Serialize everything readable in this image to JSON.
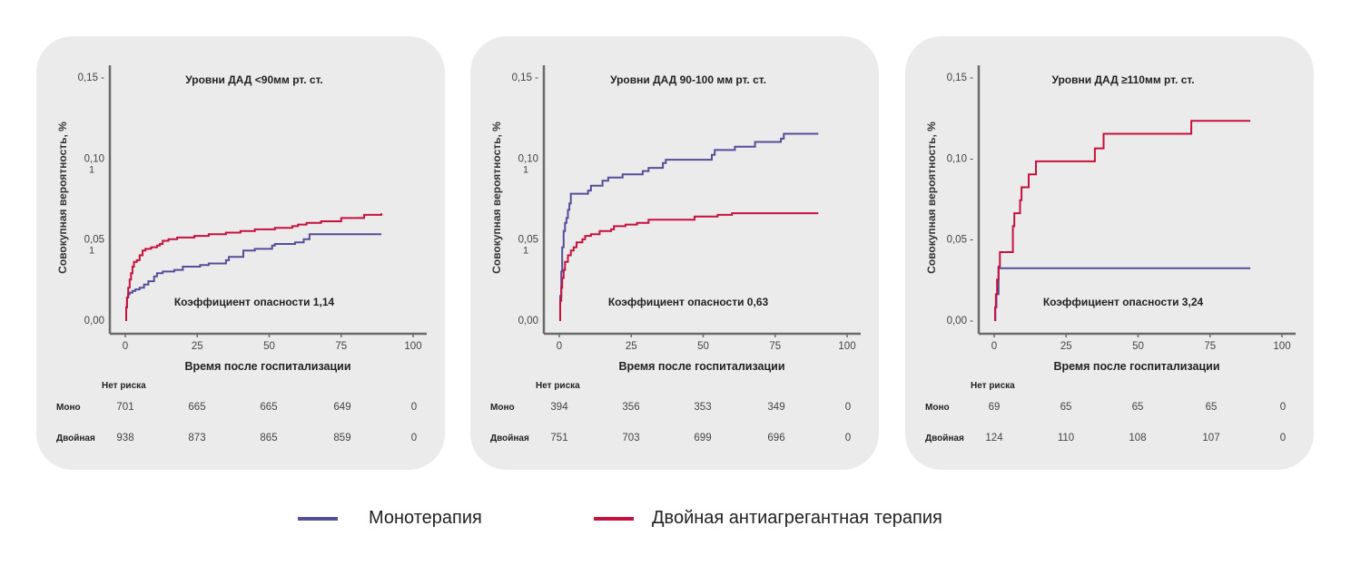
{
  "colors": {
    "mono": "#544e98",
    "dual": "#c8103e",
    "axis": "#6b6b6b",
    "panel_bg": "#ebebeb"
  },
  "legend": [
    {
      "label": "Монотерапия",
      "color": "#544e98"
    },
    {
      "label": "Двойная антиагрегантная терапия",
      "color": "#c8103e"
    }
  ],
  "chart_data": [
    {
      "type": "line",
      "title": "Уровни ДАД <90мм рт. ст.",
      "xlabel": "Время после госпитализации",
      "ylabel": "Совокупная вероятность, %",
      "xlim": [
        -3,
        104
      ],
      "ylim": [
        -0.008,
        0.158
      ],
      "x_ticks": [
        "0",
        "25",
        "50",
        "75",
        "100"
      ],
      "x_tick_values": [
        0,
        25,
        50,
        75,
        100
      ],
      "y_ticks": [
        "0,00",
        "0,05",
        "0,10",
        "0,15 -"
      ],
      "y_tick_values": [
        0,
        0.05,
        0.1,
        0.15
      ],
      "y_tick_sublabels": [
        "",
        "1",
        "1",
        ""
      ],
      "annotation": "Коэффициент опасности 1,14",
      "series": [
        {
          "name": "Монотерапия",
          "key": "mono",
          "x": [
            0,
            0.3,
            0.6,
            1,
            1.5,
            2.5,
            3.5,
            5,
            6.5,
            8,
            10,
            11,
            13,
            17,
            20,
            26,
            29,
            35,
            36,
            41,
            45,
            51,
            52,
            59,
            62,
            64,
            89
          ],
          "y": [
            0,
            0.008,
            0.014,
            0.016,
            0.017,
            0.018,
            0.019,
            0.02,
            0.022,
            0.024,
            0.027,
            0.029,
            0.03,
            0.031,
            0.033,
            0.034,
            0.035,
            0.037,
            0.039,
            0.043,
            0.044,
            0.046,
            0.047,
            0.048,
            0.05,
            0.053,
            0.053
          ]
        },
        {
          "name": "Двойная антиагрегантная терапия",
          "key": "dual",
          "x": [
            0,
            0.3,
            0.6,
            1,
            1.5,
            2,
            2.5,
            3,
            4,
            5,
            6,
            7,
            9,
            11,
            12,
            13,
            15,
            18,
            24,
            29,
            35,
            40,
            45,
            52,
            58,
            60,
            63,
            68,
            75,
            83,
            89
          ],
          "y": [
            0,
            0.008,
            0.014,
            0.02,
            0.025,
            0.029,
            0.033,
            0.036,
            0.037,
            0.04,
            0.043,
            0.044,
            0.045,
            0.046,
            0.047,
            0.049,
            0.05,
            0.051,
            0.052,
            0.053,
            0.054,
            0.055,
            0.056,
            0.057,
            0.058,
            0.059,
            0.06,
            0.061,
            0.063,
            0.065,
            0.066
          ]
        }
      ],
      "at_risk": {
        "header": "Нет риска",
        "rows": [
          {
            "label": "Моно",
            "values": [
              "701",
              "665",
              "665",
              "649",
              "0"
            ]
          },
          {
            "label": "Двойная",
            "values": [
              "938",
              "873",
              "865",
              "859",
              "0"
            ]
          }
        ]
      }
    },
    {
      "type": "line",
      "title": "Уровни ДАД 90-100 мм рт. ст.",
      "xlabel": "Время после госпитализации",
      "ylabel": "Совокупная вероятность, %",
      "xlim": [
        -3,
        104
      ],
      "ylim": [
        -0.008,
        0.158
      ],
      "x_ticks": [
        "0",
        "25",
        "50",
        "75",
        "100"
      ],
      "x_tick_values": [
        0,
        25,
        50,
        75,
        100
      ],
      "y_ticks": [
        "0,00",
        "0,05",
        "0,10",
        "0,15 -"
      ],
      "y_tick_values": [
        0,
        0.05,
        0.1,
        0.15
      ],
      "y_tick_sublabels": [
        "",
        "1",
        "1",
        ""
      ],
      "annotation": "Коэффициент опасности 0,63",
      "series": [
        {
          "name": "Монотерапия",
          "key": "mono",
          "x": [
            0,
            0.3,
            0.7,
            1,
            1.5,
            2,
            2.5,
            3,
            3.5,
            4,
            5,
            10,
            11,
            15,
            17,
            22,
            29,
            31,
            36,
            37,
            53,
            54,
            61,
            68,
            77,
            78,
            90
          ],
          "y": [
            0,
            0.015,
            0.03,
            0.045,
            0.055,
            0.06,
            0.063,
            0.068,
            0.072,
            0.078,
            0.078,
            0.08,
            0.083,
            0.086,
            0.088,
            0.09,
            0.092,
            0.094,
            0.097,
            0.099,
            0.102,
            0.105,
            0.107,
            0.11,
            0.112,
            0.115,
            0.115
          ]
        },
        {
          "name": "Двойная антиагрегантная терапия",
          "key": "dual",
          "x": [
            0,
            0.3,
            0.7,
            1,
            1.5,
            2,
            3,
            4,
            5,
            6,
            8,
            9,
            11,
            14,
            18,
            19,
            23,
            27,
            31,
            47,
            55,
            60,
            90
          ],
          "y": [
            0,
            0.012,
            0.02,
            0.026,
            0.031,
            0.036,
            0.04,
            0.043,
            0.045,
            0.048,
            0.05,
            0.052,
            0.053,
            0.055,
            0.056,
            0.058,
            0.059,
            0.06,
            0.062,
            0.064,
            0.065,
            0.066,
            0.066
          ]
        }
      ],
      "at_risk": {
        "header": "Нет риска",
        "rows": [
          {
            "label": "Моно",
            "values": [
              "394",
              "356",
              "353",
              "349",
              "0"
            ]
          },
          {
            "label": "Двойная",
            "values": [
              "751",
              "703",
              "699",
              "696",
              "0"
            ]
          }
        ]
      }
    },
    {
      "type": "line",
      "title": "Уровни ДАД ≥110мм рт. ст.",
      "xlabel": "Время после госпитализации",
      "ylabel": "Совокупная вероятность, %",
      "xlim": [
        -3,
        104
      ],
      "ylim": [
        -0.008,
        0.158
      ],
      "x_ticks": [
        "0",
        "25",
        "50",
        "75",
        "100"
      ],
      "x_tick_values": [
        0,
        25,
        50,
        75,
        100
      ],
      "y_ticks": [
        "0,00 -",
        "0,05 -",
        "0,10 -",
        "0,15 -"
      ],
      "y_tick_values": [
        0,
        0.05,
        0.1,
        0.15
      ],
      "y_tick_sublabels": [
        "",
        "",
        "",
        ""
      ],
      "annotation": "Коэффициент опасности 3,24",
      "series": [
        {
          "name": "Монотерапия",
          "key": "mono",
          "x": [
            0,
            0.4,
            0.8,
            1.5,
            89
          ],
          "y": [
            0,
            0.008,
            0.016,
            0.032,
            0.032
          ]
        },
        {
          "name": "Двойная антиагрегантная терапия",
          "key": "dual",
          "x": [
            0,
            0.3,
            0.6,
            1,
            1.5,
            2,
            6.5,
            7,
            9,
            9.5,
            12,
            14.5,
            35,
            38,
            68.5,
            89
          ],
          "y": [
            0,
            0.008,
            0.016,
            0.025,
            0.033,
            0.042,
            0.058,
            0.066,
            0.074,
            0.082,
            0.09,
            0.098,
            0.106,
            0.115,
            0.123,
            0.123
          ]
        }
      ],
      "at_risk": {
        "header": "Нет риска",
        "rows": [
          {
            "label": "Моно",
            "values": [
              "69",
              "65",
              "65",
              "65",
              "0"
            ]
          },
          {
            "label": "Двойная",
            "values": [
              "124",
              "110",
              "108",
              "107",
              "0"
            ]
          }
        ]
      }
    }
  ]
}
